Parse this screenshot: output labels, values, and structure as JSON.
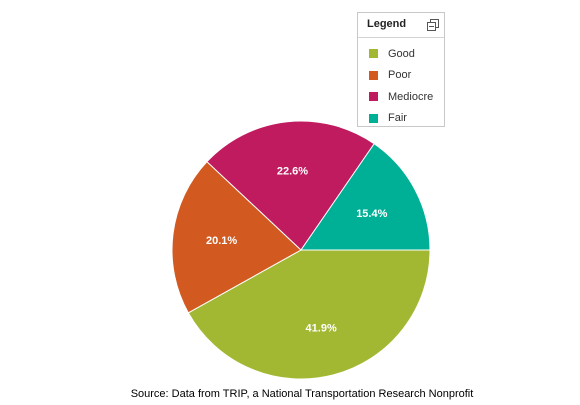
{
  "chart_data": {
    "type": "pie",
    "title": "",
    "slices": [
      {
        "name": "Good",
        "value": 41.9,
        "label": "41.9%",
        "color": "#a2b832"
      },
      {
        "name": "Poor",
        "value": 20.1,
        "label": "20.1%",
        "color": "#d25a20"
      },
      {
        "name": "Mediocre",
        "value": 22.6,
        "label": "22.6%",
        "color": "#c01b5e"
      },
      {
        "name": "Fair",
        "value": 15.4,
        "label": "15.4%",
        "color": "#00b096"
      }
    ],
    "legend": {
      "title": "Legend",
      "placement": "top-right",
      "toggle_icon": "window-restore-icon"
    },
    "source": "Source: Data from TRIP, a National Transportation Research Nonprofit"
  }
}
